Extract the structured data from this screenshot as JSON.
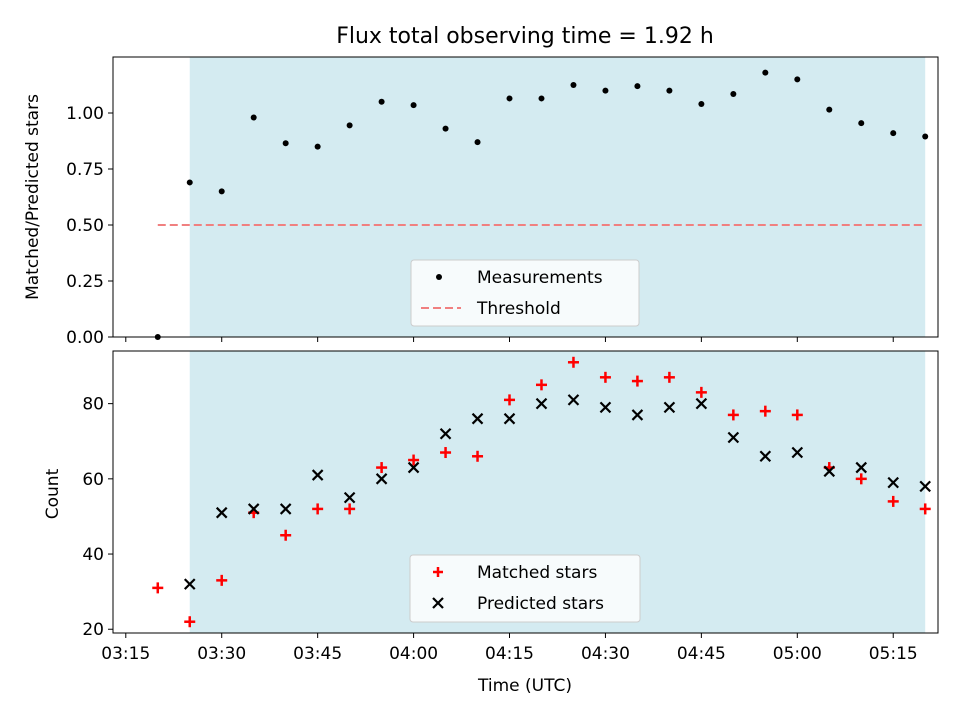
{
  "chart_data": [
    {
      "type": "scatter",
      "title": "Flux total observing time = 1.92 h",
      "ylabel": "Matched/Predicted stars",
      "xlabel": "",
      "ylim": [
        0,
        1.25
      ],
      "yticks": [
        "0.00",
        "0.25",
        "0.50",
        "0.75",
        "1.00"
      ],
      "ytick_values": [
        0,
        0.25,
        0.5,
        0.75,
        1.0
      ],
      "x_range": [
        "03:13",
        "05:22"
      ],
      "shaded_interval": [
        "03:25",
        "05:20"
      ],
      "shaded_color": "#d4ebf1",
      "legend_position": "lower center",
      "series": [
        {
          "name": "Measurements",
          "color": "#000000",
          "marker": "dot",
          "x": [
            "03:20",
            "03:25",
            "03:30",
            "03:35",
            "03:40",
            "03:45",
            "03:50",
            "03:55",
            "04:00",
            "04:05",
            "04:10",
            "04:15",
            "04:20",
            "04:25",
            "04:30",
            "04:35",
            "04:40",
            "04:45",
            "04:50",
            "04:55",
            "05:00",
            "05:05",
            "05:10",
            "05:15",
            "05:20"
          ],
          "values": [
            0.0,
            0.69,
            0.65,
            0.98,
            0.865,
            0.85,
            0.945,
            1.05,
            1.035,
            0.93,
            0.87,
            1.065,
            1.065,
            1.125,
            1.1,
            1.12,
            1.1,
            1.04,
            1.085,
            1.18,
            1.15,
            1.015,
            0.955,
            0.91,
            0.895
          ]
        },
        {
          "name": "Threshold",
          "color": "#f08080",
          "style": "dashed-line",
          "x": [
            "03:20",
            "05:20"
          ],
          "values": [
            0.5,
            0.5
          ]
        }
      ]
    },
    {
      "type": "scatter",
      "title": "",
      "ylabel": "Count",
      "xlabel": "Time (UTC)",
      "ylim": [
        19,
        94
      ],
      "yticks": [
        "20",
        "40",
        "60",
        "80"
      ],
      "ytick_values": [
        20,
        40,
        60,
        80
      ],
      "x_range": [
        "03:13",
        "05:22"
      ],
      "xticks": [
        "03:15",
        "03:30",
        "03:45",
        "04:00",
        "04:15",
        "04:30",
        "04:45",
        "05:00",
        "05:15"
      ],
      "shaded_interval": [
        "03:25",
        "05:20"
      ],
      "shaded_color": "#d4ebf1",
      "legend_position": "lower center",
      "series": [
        {
          "name": "Matched stars",
          "color": "#ff0000",
          "marker": "plus",
          "x": [
            "03:20",
            "03:25",
            "03:30",
            "03:35",
            "03:40",
            "03:45",
            "03:50",
            "03:55",
            "04:00",
            "04:05",
            "04:10",
            "04:15",
            "04:20",
            "04:25",
            "04:30",
            "04:35",
            "04:40",
            "04:45",
            "04:50",
            "04:55",
            "05:00",
            "05:05",
            "05:10",
            "05:15",
            "05:20"
          ],
          "values": [
            31,
            22,
            33,
            51,
            45,
            52,
            52,
            63,
            65,
            67,
            66,
            81,
            85,
            91,
            87,
            86,
            87,
            83,
            77,
            78,
            77,
            63,
            60,
            54,
            52
          ]
        },
        {
          "name": "Predicted stars",
          "color": "#000000",
          "marker": "x",
          "x": [
            "03:25",
            "03:30",
            "03:35",
            "03:40",
            "03:45",
            "03:50",
            "03:55",
            "04:00",
            "04:05",
            "04:10",
            "04:15",
            "04:20",
            "04:25",
            "04:30",
            "04:35",
            "04:40",
            "04:45",
            "04:50",
            "04:55",
            "05:00",
            "05:05",
            "05:10",
            "05:15",
            "05:20"
          ],
          "values": [
            32,
            51,
            52,
            52,
            61,
            55,
            60,
            63,
            72,
            76,
            76,
            80,
            81,
            79,
            77,
            79,
            80,
            71,
            66,
            67,
            62,
            63,
            59,
            58
          ]
        }
      ]
    }
  ]
}
